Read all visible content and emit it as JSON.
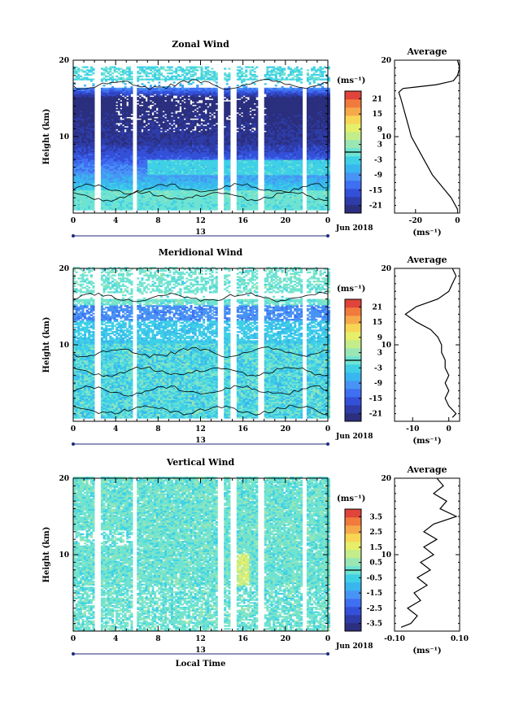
{
  "chart_data": [
    {
      "type": "heatmap",
      "title": "Zonal Wind",
      "ylabel": "Height (km)",
      "xlabel": "",
      "xlim": [
        0,
        24
      ],
      "ylim": [
        0,
        20
      ],
      "yticks": [
        "10",
        "20"
      ],
      "xticks": [
        "0",
        "4",
        "8",
        "12",
        "16",
        "20",
        "0"
      ],
      "date_day": "13",
      "date_label": "Jun 2018",
      "colorbar": {
        "unit": "(ms⁻¹)",
        "range": [
          -24,
          24
        ],
        "ticks": [
          "21",
          "15",
          "9",
          "3",
          "-3",
          "-9",
          "-15",
          "-21"
        ],
        "zero_line": 0
      },
      "profile": {
        "title": "Average",
        "xlabel": "(ms⁻¹)",
        "xlim": [
          -30,
          1
        ],
        "xticks": [
          "-20",
          "0"
        ],
        "ylim": [
          0,
          20
        ],
        "yticks": [
          "10",
          "20"
        ],
        "points": [
          [
            0,
            0.5
          ],
          [
            -1,
            1
          ],
          [
            -3,
            2
          ],
          [
            -6,
            3
          ],
          [
            -9,
            4
          ],
          [
            -12,
            5
          ],
          [
            -14,
            6
          ],
          [
            -16,
            7
          ],
          [
            -18,
            8
          ],
          [
            -20,
            9
          ],
          [
            -22,
            10
          ],
          [
            -23,
            11
          ],
          [
            -24,
            12
          ],
          [
            -25,
            13
          ],
          [
            -26,
            14
          ],
          [
            -27,
            15
          ],
          [
            -28,
            15.8
          ],
          [
            -26,
            16.3
          ],
          [
            -10,
            16.8
          ],
          [
            -2,
            17.3
          ],
          [
            0,
            18
          ],
          [
            1,
            19
          ],
          [
            0,
            20
          ]
        ]
      },
      "gaps_hours": [
        2.3,
        5.8,
        13.9,
        15.1,
        17.7,
        21.8
      ]
    },
    {
      "type": "heatmap",
      "title": "Meridional Wind",
      "ylabel": "Height (km)",
      "xlabel": "",
      "xlim": [
        0,
        24
      ],
      "ylim": [
        0,
        20
      ],
      "yticks": [
        "10",
        "20"
      ],
      "xticks": [
        "0",
        "4",
        "8",
        "12",
        "16",
        "20",
        "0"
      ],
      "date_day": "13",
      "date_label": "Jun 2018",
      "colorbar": {
        "unit": "(ms⁻¹)",
        "range": [
          -24,
          24
        ],
        "ticks": [
          "21",
          "15",
          "9",
          "3",
          "-3",
          "-9",
          "-15",
          "-21"
        ],
        "zero_line": 0
      },
      "profile": {
        "title": "Average",
        "xlabel": "(ms⁻¹)",
        "xlim": [
          -15,
          3
        ],
        "xticks": [
          "-10",
          "0"
        ],
        "ylim": [
          0,
          20
        ],
        "yticks": [
          "10",
          "20"
        ],
        "points": [
          [
            1,
            0.5
          ],
          [
            2,
            1
          ],
          [
            0,
            2
          ],
          [
            -1,
            3
          ],
          [
            0,
            4
          ],
          [
            -1,
            5
          ],
          [
            0,
            6
          ],
          [
            -1,
            7
          ],
          [
            -1,
            8
          ],
          [
            -2,
            9
          ],
          [
            -2,
            10
          ],
          [
            -3,
            11
          ],
          [
            -5,
            12
          ],
          [
            -9,
            13
          ],
          [
            -12,
            14
          ],
          [
            -9,
            15
          ],
          [
            -3,
            16
          ],
          [
            0,
            17
          ],
          [
            1,
            18
          ],
          [
            2,
            19
          ],
          [
            1,
            20
          ]
        ]
      },
      "gaps_hours": [
        2.3,
        5.8,
        13.9,
        15.1,
        17.7,
        21.8
      ]
    },
    {
      "type": "heatmap",
      "title": "Vertical Wind",
      "ylabel": "Height (km)",
      "xlabel": "Local Time",
      "xlim": [
        0,
        24
      ],
      "ylim": [
        0,
        20
      ],
      "yticks": [
        "10",
        "20"
      ],
      "xticks": [
        "0",
        "4",
        "8",
        "12",
        "16",
        "20",
        "0"
      ],
      "date_day": "13",
      "date_label": "Jun 2018",
      "colorbar": {
        "unit": "(ms⁻¹)",
        "range": [
          -4,
          4
        ],
        "ticks": [
          "3.5",
          "2.5",
          "1.5",
          "0.5",
          "-0.5",
          "-1.5",
          "-2.5",
          "-3.5"
        ],
        "zero_line": 0
      },
      "profile": {
        "title": "Average",
        "xlabel": "(ms⁻¹)",
        "xlim": [
          -0.1,
          0.1
        ],
        "xticks": [
          "-0.10",
          "0.10"
        ],
        "ylim": [
          0,
          20
        ],
        "yticks": [
          "10",
          "20"
        ],
        "points": [
          [
            -0.08,
            0.5
          ],
          [
            -0.05,
            1
          ],
          [
            -0.03,
            2
          ],
          [
            -0.06,
            3
          ],
          [
            -0.02,
            4
          ],
          [
            -0.04,
            5
          ],
          [
            0.0,
            6
          ],
          [
            -0.03,
            7
          ],
          [
            0.01,
            8
          ],
          [
            -0.02,
            9
          ],
          [
            0.02,
            10
          ],
          [
            -0.01,
            11
          ],
          [
            0.03,
            12
          ],
          [
            -0.01,
            13
          ],
          [
            0.02,
            14
          ],
          [
            0.09,
            15
          ],
          [
            0.04,
            16
          ],
          [
            0.06,
            17
          ],
          [
            0.02,
            18
          ],
          [
            0.05,
            19
          ],
          [
            0.03,
            20
          ]
        ]
      },
      "gaps_hours": [
        2.3,
        5.8,
        13.9,
        15.1,
        17.7,
        21.8
      ]
    }
  ]
}
